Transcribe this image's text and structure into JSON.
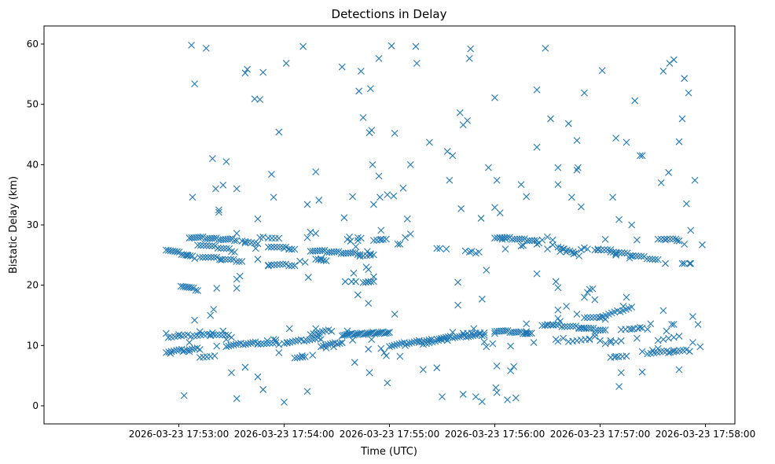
{
  "chart_data": {
    "type": "scatter",
    "title": "Detections in Delay",
    "xlabel": "Time (UTC)",
    "ylabel": "Bistatic Delay (km)",
    "marker": "x",
    "color": "#1f77b4",
    "xlim": [
      -1.28,
      5.28
    ],
    "ylim": [
      -3.0,
      63.0
    ],
    "x_unit": "minutes after 2026-03-23 17:53:00",
    "xticks": [
      0,
      1,
      2,
      3,
      4,
      5
    ],
    "xtick_labels": [
      "2026-03-23 17:53:00",
      "2026-03-23 17:54:00",
      "2026-03-23 17:55:00",
      "2026-03-23 17:56:00",
      "2026-03-23 17:57:00",
      "2026-03-23 17:58:00"
    ],
    "yticks": [
      0,
      10,
      20,
      30,
      40,
      50,
      60
    ],
    "ytick_labels": [
      "0",
      "10",
      "20",
      "30",
      "40",
      "50",
      "60"
    ],
    "segments": [
      {
        "x0": -0.12,
        "y0": 26.0,
        "x1": 0.15,
        "y1": 24.6,
        "n": 14
      },
      {
        "x0": 0.02,
        "y0": 20.0,
        "x1": 0.18,
        "y1": 19.2,
        "n": 9
      },
      {
        "x0": 0.1,
        "y0": 28.0,
        "x1": 0.55,
        "y1": 27.5,
        "n": 22
      },
      {
        "x0": 0.18,
        "y0": 26.8,
        "x1": 0.48,
        "y1": 26.0,
        "n": 12
      },
      {
        "x0": 0.2,
        "y0": 24.8,
        "x1": 0.6,
        "y1": 24.0,
        "n": 16
      },
      {
        "x0": 0.6,
        "y0": 27.5,
        "x1": 0.75,
        "y1": 26.8,
        "n": 6
      },
      {
        "x0": 0.85,
        "y0": 28.0,
        "x1": 0.95,
        "y1": 27.8,
        "n": 4
      },
      {
        "x0": 0.85,
        "y0": 26.5,
        "x1": 1.1,
        "y1": 26.0,
        "n": 10
      },
      {
        "x0": 0.85,
        "y0": 23.5,
        "x1": 1.1,
        "y1": 23.3,
        "n": 10
      },
      {
        "x0": 1.25,
        "y0": 25.8,
        "x1": 1.72,
        "y1": 25.2,
        "n": 22
      },
      {
        "x0": 1.3,
        "y0": 24.5,
        "x1": 1.4,
        "y1": 24.0,
        "n": 5
      },
      {
        "x0": 1.75,
        "y0": 20.6,
        "x1": 1.85,
        "y1": 20.6,
        "n": 5
      },
      {
        "x0": 1.72,
        "y0": 25.0,
        "x1": 1.85,
        "y1": 25.0,
        "n": 5
      },
      {
        "x0": 1.85,
        "y0": 27.6,
        "x1": 1.97,
        "y1": 27.6,
        "n": 5
      },
      {
        "x0": 3.0,
        "y0": 28.0,
        "x1": 3.4,
        "y1": 27.4,
        "n": 18
      },
      {
        "x0": 3.6,
        "y0": 26.5,
        "x1": 3.8,
        "y1": 25.0,
        "n": 8
      },
      {
        "x0": 3.95,
        "y0": 26.0,
        "x1": 4.1,
        "y1": 25.8,
        "n": 6
      },
      {
        "x0": 4.1,
        "y0": 25.7,
        "x1": 4.55,
        "y1": 24.2,
        "n": 18
      },
      {
        "x0": 4.55,
        "y0": 27.8,
        "x1": 4.75,
        "y1": 27.5,
        "n": 8
      },
      {
        "x0": -0.12,
        "y0": 9.0,
        "x1": 0.2,
        "y1": 9.5,
        "n": 14
      },
      {
        "x0": -0.1,
        "y0": 11.5,
        "x1": 0.3,
        "y1": 11.8,
        "n": 14
      },
      {
        "x0": 0.3,
        "y0": 12.0,
        "x1": 0.5,
        "y1": 11.5,
        "n": 8
      },
      {
        "x0": 0.2,
        "y0": 8.2,
        "x1": 0.3,
        "y1": 8.2,
        "n": 4
      },
      {
        "x0": 0.45,
        "y0": 10.0,
        "x1": 0.75,
        "y1": 10.5,
        "n": 14
      },
      {
        "x0": 0.75,
        "y0": 10.4,
        "x1": 0.95,
        "y1": 10.3,
        "n": 8
      },
      {
        "x0": 1.0,
        "y0": 10.5,
        "x1": 1.35,
        "y1": 11.2,
        "n": 14
      },
      {
        "x0": 1.1,
        "y0": 8.1,
        "x1": 1.2,
        "y1": 8.1,
        "n": 5
      },
      {
        "x0": 1.25,
        "y0": 12.0,
        "x1": 1.45,
        "y1": 12.5,
        "n": 8
      },
      {
        "x0": 1.35,
        "y0": 10.0,
        "x1": 1.55,
        "y1": 10.5,
        "n": 10
      },
      {
        "x0": 1.55,
        "y0": 11.8,
        "x1": 2.0,
        "y1": 12.2,
        "n": 30
      },
      {
        "x0": 2.0,
        "y0": 10.0,
        "x1": 2.4,
        "y1": 11.0,
        "n": 18
      },
      {
        "x0": 2.35,
        "y0": 10.5,
        "x1": 2.55,
        "y1": 11.0,
        "n": 8
      },
      {
        "x0": 2.45,
        "y0": 11.2,
        "x1": 2.9,
        "y1": 11.8,
        "n": 22
      },
      {
        "x0": 2.7,
        "y0": 12.2,
        "x1": 2.9,
        "y1": 12.0,
        "n": 6
      },
      {
        "x0": 3.0,
        "y0": 12.5,
        "x1": 3.35,
        "y1": 12.0,
        "n": 18
      },
      {
        "x0": 3.45,
        "y0": 13.5,
        "x1": 3.85,
        "y1": 13.0,
        "n": 16
      },
      {
        "x0": 3.8,
        "y0": 13.0,
        "x1": 4.05,
        "y1": 12.5,
        "n": 12
      },
      {
        "x0": 3.7,
        "y0": 10.8,
        "x1": 3.9,
        "y1": 11.0,
        "n": 6
      },
      {
        "x0": 3.85,
        "y0": 14.8,
        "x1": 4.05,
        "y1": 14.5,
        "n": 8
      },
      {
        "x0": 4.0,
        "y0": 14.8,
        "x1": 4.3,
        "y1": 16.3,
        "n": 12
      },
      {
        "x0": 4.05,
        "y0": 10.5,
        "x1": 4.2,
        "y1": 10.8,
        "n": 4
      },
      {
        "x0": 4.1,
        "y0": 8.2,
        "x1": 4.25,
        "y1": 8.2,
        "n": 5
      },
      {
        "x0": 4.2,
        "y0": 12.8,
        "x1": 4.4,
        "y1": 12.8,
        "n": 6
      },
      {
        "x0": 4.45,
        "y0": 8.8,
        "x1": 4.85,
        "y1": 9.2,
        "n": 14
      },
      {
        "x0": 4.55,
        "y0": 11.0,
        "x1": 4.75,
        "y1": 11.5,
        "n": 5
      }
    ],
    "points": [
      [
        0.05,
        1.7
      ],
      [
        0.12,
        59.8
      ],
      [
        0.15,
        53.4
      ],
      [
        0.13,
        34.6
      ],
      [
        0.26,
        59.3
      ],
      [
        0.32,
        41.0
      ],
      [
        0.35,
        36.0
      ],
      [
        0.38,
        32.5
      ],
      [
        0.38,
        32.1
      ],
      [
        0.42,
        36.6
      ],
      [
        0.45,
        40.5
      ],
      [
        0.55,
        36.0
      ],
      [
        0.55,
        28.6
      ],
      [
        0.63,
        55.2
      ],
      [
        0.65,
        55.8
      ],
      [
        0.72,
        50.9
      ],
      [
        0.77,
        50.8
      ],
      [
        0.8,
        55.3
      ],
      [
        0.88,
        38.4
      ],
      [
        0.9,
        34.6
      ],
      [
        0.95,
        45.4
      ],
      [
        1.02,
        56.8
      ],
      [
        1.18,
        59.6
      ],
      [
        1.22,
        33.4
      ],
      [
        1.33,
        34.1
      ],
      [
        1.3,
        38.8
      ],
      [
        1.55,
        56.2
      ],
      [
        1.57,
        31.2
      ],
      [
        1.65,
        34.7
      ],
      [
        1.71,
        52.2
      ],
      [
        1.73,
        55.5
      ],
      [
        1.75,
        47.8
      ],
      [
        1.82,
        52.6
      ],
      [
        1.81,
        45.3
      ],
      [
        1.83,
        45.7
      ],
      [
        1.84,
        40.0
      ],
      [
        1.85,
        33.4
      ],
      [
        1.9,
        57.6
      ],
      [
        1.9,
        38.1
      ],
      [
        1.91,
        34.6
      ],
      [
        1.92,
        29.1
      ],
      [
        1.98,
        35.0
      ],
      [
        2.04,
        34.8
      ],
      [
        2.05,
        45.2
      ],
      [
        2.08,
        26.8
      ],
      [
        2.1,
        26.8
      ],
      [
        2.15,
        27.9
      ],
      [
        2.13,
        36.1
      ],
      [
        2.17,
        31.0
      ],
      [
        2.2,
        28.5
      ],
      [
        2.02,
        59.7
      ],
      [
        2.2,
        40.0
      ],
      [
        2.25,
        59.6
      ],
      [
        2.26,
        56.8
      ],
      [
        2.38,
        43.7
      ],
      [
        2.45,
        26.1
      ],
      [
        2.48,
        26.1
      ],
      [
        2.54,
        26.0
      ],
      [
        2.57,
        37.4
      ],
      [
        2.67,
        48.6
      ],
      [
        2.7,
        46.6
      ],
      [
        2.74,
        47.3
      ],
      [
        2.76,
        57.6
      ],
      [
        2.77,
        59.2
      ],
      [
        2.55,
        42.2
      ],
      [
        2.6,
        41.5
      ],
      [
        2.68,
        32.7
      ],
      [
        2.72,
        25.7
      ],
      [
        2.76,
        25.5
      ],
      [
        2.85,
        25.5
      ],
      [
        2.94,
        39.5
      ],
      [
        2.87,
        31.1
      ],
      [
        2.92,
        22.5
      ],
      [
        2.88,
        17.7
      ],
      [
        2.65,
        20.5
      ],
      [
        2.65,
        16.7
      ],
      [
        3.0,
        51.1
      ],
      [
        3.02,
        37.4
      ],
      [
        3.05,
        32.0
      ],
      [
        3.0,
        32.9
      ],
      [
        3.05,
        27.9
      ],
      [
        3.07,
        27.6
      ],
      [
        3.25,
        36.7
      ],
      [
        3.3,
        34.7
      ],
      [
        3.3,
        13.6
      ],
      [
        3.4,
        52.4
      ],
      [
        3.4,
        42.9
      ],
      [
        3.4,
        21.9
      ],
      [
        3.48,
        59.3
      ],
      [
        3.53,
        47.6
      ],
      [
        3.6,
        39.5
      ],
      [
        3.6,
        36.7
      ],
      [
        3.58,
        20.6
      ],
      [
        3.6,
        19.6
      ],
      [
        3.7,
        46.8
      ],
      [
        3.73,
        34.6
      ],
      [
        3.78,
        44.0
      ],
      [
        3.79,
        39.5
      ],
      [
        3.78,
        39.1
      ],
      [
        3.82,
        33.0
      ],
      [
        3.85,
        51.9
      ],
      [
        3.93,
        19.4
      ],
      [
        4.05,
        27.6
      ],
      [
        4.02,
        55.6
      ],
      [
        4.15,
        44.4
      ],
      [
        4.12,
        34.6
      ],
      [
        4.18,
        30.9
      ],
      [
        4.25,
        43.7
      ],
      [
        4.3,
        30.0
      ],
      [
        4.33,
        50.6
      ],
      [
        4.38,
        41.5
      ],
      [
        4.4,
        41.5
      ],
      [
        4.48,
        13.6
      ],
      [
        4.58,
        37.0
      ],
      [
        4.6,
        55.5
      ],
      [
        4.65,
        38.7
      ],
      [
        4.66,
        56.8
      ],
      [
        4.7,
        57.4
      ],
      [
        4.75,
        43.8
      ],
      [
        4.78,
        47.6
      ],
      [
        4.8,
        54.3
      ],
      [
        4.84,
        51.9
      ],
      [
        4.82,
        33.5
      ],
      [
        4.86,
        29.1
      ],
      [
        4.9,
        37.4
      ],
      [
        4.97,
        26.7
      ],
      [
        4.93,
        13.5
      ],
      [
        4.95,
        9.8
      ],
      [
        4.8,
        26.8
      ],
      [
        4.78,
        23.6
      ],
      [
        4.73,
        27.4
      ],
      [
        4.63,
        12.4
      ],
      [
        4.68,
        13.5
      ],
      [
        4.6,
        15.8
      ],
      [
        4.88,
        14.8
      ],
      [
        4.75,
        6.0
      ],
      [
        4.4,
        5.6
      ],
      [
        4.18,
        3.2
      ],
      [
        4.2,
        5.5
      ],
      [
        4.25,
        18.0
      ],
      [
        4.22,
        16.5
      ],
      [
        3.95,
        17.6
      ],
      [
        3.9,
        19.3
      ],
      [
        3.88,
        18.8
      ],
      [
        3.85,
        18.0
      ],
      [
        3.78,
        15.2
      ],
      [
        3.65,
        26.0
      ],
      [
        3.68,
        16.5
      ],
      [
        3.6,
        15.9
      ],
      [
        3.62,
        14.0
      ],
      [
        3.42,
        27.0
      ],
      [
        3.27,
        26.6
      ],
      [
        3.1,
        26.0
      ],
      [
        3.02,
        6.6
      ],
      [
        3.01,
        3.0
      ],
      [
        3.02,
        2.2
      ],
      [
        3.12,
        1.0
      ],
      [
        3.2,
        1.3
      ],
      [
        3.15,
        5.8
      ],
      [
        3.18,
        6.5
      ],
      [
        3.15,
        9.9
      ],
      [
        2.9,
        10.6
      ],
      [
        2.92,
        9.8
      ],
      [
        2.98,
        10.3
      ],
      [
        2.8,
        12.8
      ],
      [
        2.82,
        25.3
      ],
      [
        2.78,
        25.6
      ],
      [
        2.7,
        1.9
      ],
      [
        2.82,
        1.5
      ],
      [
        2.88,
        0.7
      ],
      [
        2.45,
        6.3
      ],
      [
        2.5,
        1.5
      ],
      [
        2.6,
        12.2
      ],
      [
        2.32,
        6.0
      ],
      [
        2.32,
        10.2
      ],
      [
        2.28,
        10.5
      ],
      [
        2.15,
        10.0
      ],
      [
        2.1,
        8.2
      ],
      [
        2.05,
        15.2
      ],
      [
        1.97,
        8.3
      ],
      [
        1.98,
        3.8
      ],
      [
        1.95,
        8.8
      ],
      [
        1.92,
        9.5
      ],
      [
        1.8,
        9.4
      ],
      [
        1.81,
        5.5
      ],
      [
        1.7,
        18.4
      ],
      [
        1.65,
        10.9
      ],
      [
        1.6,
        12.4
      ],
      [
        1.55,
        10.5
      ],
      [
        1.47,
        9.8
      ],
      [
        1.4,
        9.6
      ],
      [
        1.33,
        11.8
      ],
      [
        1.3,
        12.8
      ],
      [
        1.27,
        8.4
      ],
      [
        1.22,
        2.4
      ],
      [
        1.17,
        8.3
      ],
      [
        1.05,
        12.8
      ],
      [
        1.03,
        10.5
      ],
      [
        1.0,
        0.6
      ],
      [
        0.92,
        10.9
      ],
      [
        0.95,
        8.8
      ],
      [
        0.9,
        11.0
      ],
      [
        0.84,
        10.8
      ],
      [
        0.8,
        2.7
      ],
      [
        0.75,
        4.8
      ],
      [
        0.63,
        6.4
      ],
      [
        0.55,
        1.2
      ],
      [
        0.5,
        5.5
      ],
      [
        0.45,
        11.0
      ],
      [
        0.42,
        12.4
      ],
      [
        0.36,
        9.9
      ],
      [
        0.34,
        8.3
      ],
      [
        0.2,
        12.3
      ],
      [
        0.15,
        14.2
      ],
      [
        0.0,
        11.8
      ],
      [
        -0.12,
        12.0
      ],
      [
        -0.08,
        8.7
      ],
      [
        0.04,
        9.0
      ],
      [
        0.1,
        10.5
      ],
      [
        0.1,
        9.0
      ],
      [
        0.32,
        12.1
      ],
      [
        0.3,
        15.0
      ],
      [
        0.33,
        16.0
      ],
      [
        0.36,
        19.5
      ],
      [
        0.4,
        24.2
      ],
      [
        0.55,
        19.5
      ],
      [
        0.55,
        21.0
      ],
      [
        0.58,
        21.5
      ],
      [
        0.5,
        25.6
      ],
      [
        0.53,
        25.5
      ],
      [
        0.63,
        27.0
      ],
      [
        0.73,
        26.1
      ],
      [
        0.75,
        31.0
      ],
      [
        0.75,
        24.3
      ],
      [
        0.77,
        27.9
      ],
      [
        0.8,
        28.0
      ],
      [
        0.85,
        23.2
      ],
      [
        1.0,
        26.1
      ],
      [
        1.05,
        26.0
      ],
      [
        1.2,
        23.8
      ],
      [
        1.15,
        24.0
      ],
      [
        1.22,
        27.9
      ],
      [
        1.25,
        28.8
      ],
      [
        1.3,
        28.6
      ],
      [
        1.35,
        24.4
      ],
      [
        1.23,
        21.3
      ],
      [
        1.6,
        27.6
      ],
      [
        1.62,
        28.0
      ],
      [
        1.66,
        22.0
      ],
      [
        1.63,
        27.3
      ],
      [
        1.68,
        26.4
      ],
      [
        1.7,
        27.9
      ],
      [
        1.73,
        27.8
      ],
      [
        1.79,
        25.6
      ],
      [
        1.82,
        25.2
      ],
      [
        1.85,
        21.4
      ],
      [
        1.7,
        27.4
      ],
      [
        1.92,
        27.6
      ],
      [
        1.67,
        7.2
      ],
      [
        1.83,
        11.0
      ],
      [
        3.37,
        10.5
      ],
      [
        3.45,
        27.5
      ],
      [
        3.5,
        28.0
      ],
      [
        3.55,
        27.5
      ],
      [
        3.5,
        26.0
      ],
      [
        3.55,
        26.7
      ],
      [
        3.62,
        25.6
      ],
      [
        3.68,
        25.5
      ],
      [
        3.75,
        25.2
      ],
      [
        3.58,
        11.0
      ],
      [
        3.65,
        11.2
      ],
      [
        3.6,
        14.5
      ],
      [
        3.6,
        10.7
      ],
      [
        3.55,
        13.4
      ],
      [
        3.5,
        13.5
      ],
      [
        3.9,
        11.0
      ],
      [
        3.95,
        11.5
      ],
      [
        4.0,
        10.8
      ],
      [
        3.95,
        12.0
      ],
      [
        4.1,
        10.8
      ],
      [
        4.15,
        8.2
      ],
      [
        4.3,
        12.7
      ],
      [
        4.35,
        11.2
      ],
      [
        4.38,
        13.0
      ],
      [
        4.45,
        12.7
      ],
      [
        4.5,
        9.2
      ],
      [
        4.55,
        9.5
      ],
      [
        4.65,
        8.8
      ],
      [
        4.7,
        9.2
      ],
      [
        4.4,
        9.0
      ],
      [
        4.7,
        13.5
      ],
      [
        4.88,
        10.5
      ],
      [
        4.86,
        23.6
      ],
      [
        4.85,
        23.6
      ],
      [
        4.8,
        23.6
      ],
      [
        4.62,
        23.6
      ],
      [
        4.62,
        27.5
      ],
      [
        4.35,
        27.5
      ],
      [
        4.3,
        24.8
      ],
      [
        4.28,
        24.5
      ],
      [
        4.15,
        25.2
      ],
      [
        4.15,
        25.0
      ],
      [
        3.98,
        26.0
      ],
      [
        3.88,
        26.0
      ],
      [
        3.85,
        26.2
      ],
      [
        3.82,
        25.9
      ],
      [
        3.4,
        26.8
      ],
      [
        3.25,
        26.5
      ],
      [
        3.1,
        27.7
      ],
      [
        3.0,
        12.0
      ],
      [
        3.3,
        12.3
      ],
      [
        3.3,
        12.0
      ],
      [
        1.58,
        20.6
      ],
      [
        1.64,
        20.6
      ],
      [
        1.68,
        20.6
      ],
      [
        1.78,
        23.0
      ],
      [
        1.8,
        22.6
      ],
      [
        1.8,
        20.6
      ],
      [
        1.8,
        17.0
      ],
      [
        0.08,
        25.0
      ]
    ]
  }
}
